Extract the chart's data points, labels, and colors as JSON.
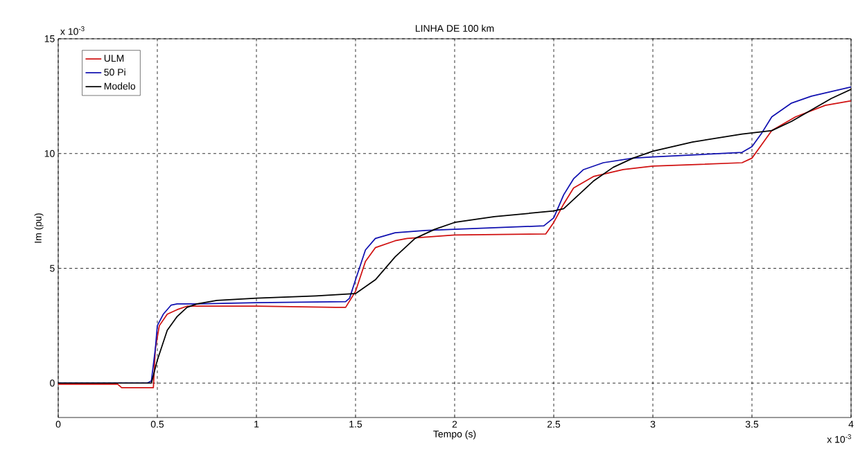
{
  "chart_data": {
    "type": "line",
    "title": "LINHA DE 100 km",
    "xlabel": "Tempo (s)",
    "ylabel": "Im (pu)",
    "annotations": [
      "x 10$^{-3}$",
      "x 10$^{-3}$"
    ],
    "xlim": [
      0,
      4
    ],
    "ylim": [
      -1.5,
      15
    ],
    "xticks": [
      0,
      0.5,
      1,
      1.5,
      2,
      2.5,
      3,
      3.5,
      4
    ],
    "yticks": [
      0,
      5,
      10,
      15
    ],
    "grid": true,
    "legend": "top left",
    "marker": "none",
    "line_style": "solid",
    "series": [
      {
        "name": "ULM",
        "color": "#d01010",
        "x": [
          0,
          0.3,
          0.32,
          0.47,
          0.48,
          0.49,
          0.51,
          0.55,
          0.6,
          0.65,
          1.0,
          1.4,
          1.45,
          1.5,
          1.55,
          1.6,
          1.7,
          1.76,
          2.0,
          2.46,
          2.5,
          2.55,
          2.6,
          2.7,
          2.85,
          3.0,
          3.45,
          3.5,
          3.55,
          3.6,
          3.72,
          3.87,
          4.0
        ],
        "values": [
          -0.05,
          -0.05,
          -0.2,
          -0.2,
          -0.2,
          1.5,
          2.5,
          3.0,
          3.2,
          3.35,
          3.35,
          3.3,
          3.3,
          4.0,
          5.3,
          5.9,
          6.2,
          6.3,
          6.45,
          6.5,
          7.0,
          7.8,
          8.5,
          9.0,
          9.3,
          9.45,
          9.6,
          9.8,
          10.4,
          11.0,
          11.6,
          12.1,
          12.3
        ]
      },
      {
        "name": "50 Pi",
        "color": "#1010b0",
        "x": [
          0,
          0.45,
          0.47,
          0.49,
          0.5,
          0.53,
          0.57,
          0.6,
          0.7,
          1.0,
          1.45,
          1.47,
          1.5,
          1.55,
          1.6,
          1.7,
          1.85,
          2.0,
          2.45,
          2.5,
          2.55,
          2.6,
          2.65,
          2.75,
          2.9,
          3.0,
          3.45,
          3.5,
          3.55,
          3.6,
          3.7,
          3.8,
          4.0
        ],
        "values": [
          0.0,
          0.0,
          0.1,
          1.5,
          2.5,
          3.0,
          3.4,
          3.45,
          3.45,
          3.5,
          3.55,
          3.7,
          4.5,
          5.8,
          6.3,
          6.55,
          6.65,
          6.7,
          6.85,
          7.2,
          8.2,
          8.9,
          9.3,
          9.6,
          9.8,
          9.85,
          10.05,
          10.3,
          10.9,
          11.6,
          12.2,
          12.5,
          12.9
        ]
      },
      {
        "name": "Modelo",
        "color": "#000000",
        "x": [
          0,
          0.47,
          0.5,
          0.55,
          0.6,
          0.65,
          0.7,
          0.8,
          1.0,
          1.3,
          1.5,
          1.6,
          1.7,
          1.8,
          1.9,
          2.0,
          2.2,
          2.5,
          2.55,
          2.6,
          2.7,
          2.8,
          2.9,
          3.0,
          3.2,
          3.45,
          3.6,
          3.7,
          3.8,
          3.9,
          4.0
        ],
        "values": [
          0.0,
          0.0,
          1.0,
          2.3,
          2.9,
          3.3,
          3.45,
          3.6,
          3.7,
          3.8,
          3.9,
          4.5,
          5.5,
          6.3,
          6.7,
          7.0,
          7.25,
          7.5,
          7.6,
          8.0,
          8.8,
          9.4,
          9.8,
          10.1,
          10.5,
          10.85,
          11.0,
          11.4,
          11.9,
          12.4,
          12.8
        ]
      }
    ]
  }
}
